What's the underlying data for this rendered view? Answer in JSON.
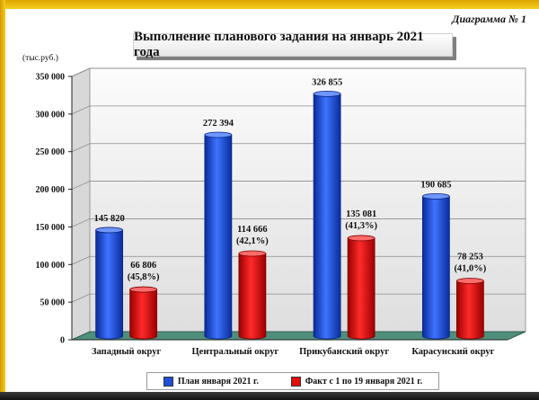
{
  "diagram_label": "Диаграмма № 1",
  "unit_label": "(тыс.руб.)",
  "colors": {
    "plan": "#1f4fd8",
    "fact": "#e01010",
    "floor": "#4f8f7c"
  },
  "chart_data": {
    "type": "bar",
    "title": "Выполнение планового задания на январь 2021 года",
    "xlabel": "",
    "ylabel": "",
    "ylim": [
      0,
      350000
    ],
    "yticks": [
      0,
      50000,
      100000,
      150000,
      200000,
      250000,
      300000,
      350000
    ],
    "ytick_labels": [
      "0",
      "50 000",
      "100 000",
      "150 000",
      "200 000",
      "250 000",
      "300 000",
      "350 000"
    ],
    "categories": [
      "Западный округ",
      "Центральный округ",
      "Прикубанский округ",
      "Карасунский округ"
    ],
    "series": [
      {
        "name": "План января 2021 г.",
        "values": [
          145820,
          272394,
          326855,
          190685
        ],
        "labels": [
          "145 820",
          "272 394",
          "326 855",
          "190 685"
        ]
      },
      {
        "name": "Факт с 1 по 19 января 2021 г.",
        "values": [
          66806,
          114666,
          135081,
          78253
        ],
        "labels": [
          "66 806",
          "114 666",
          "135 081",
          "78 253"
        ],
        "percent_labels": [
          "(45,8%)",
          "(42,1%)",
          "(41,3%)",
          "(41,0%)"
        ]
      }
    ],
    "grid": true,
    "legend_position": "bottom"
  }
}
